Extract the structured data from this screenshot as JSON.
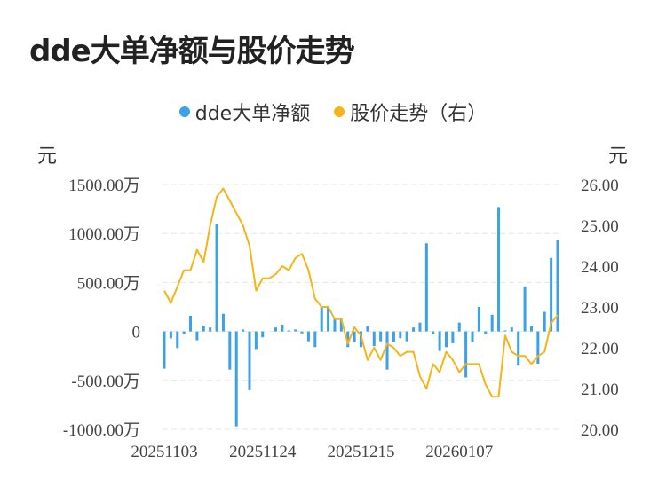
{
  "title": "dde大单净额与股价走势",
  "left_unit": "元",
  "right_unit": "元",
  "colors": {
    "bar": "#3ba1e8",
    "line": "#f5b417",
    "grid": "#e6e6e6"
  },
  "chart_data": {
    "type": "bar+line",
    "legend": [
      "dde大单净额",
      "股价走势（右）"
    ],
    "y_left": {
      "ticks": [
        1500,
        1000,
        500,
        0,
        -500,
        -1000
      ],
      "tick_labels": [
        "1500.00万",
        "1000.00万",
        "500.00万",
        "0",
        "-500.00万",
        "-1000.00万"
      ],
      "range": [
        -1000,
        1500
      ]
    },
    "y_right": {
      "ticks": [
        26,
        25,
        24,
        23,
        22,
        21,
        20
      ],
      "tick_labels": [
        "26.00",
        "25.00",
        "24.00",
        "23.00",
        "22.00",
        "21.00",
        "20.00"
      ],
      "range": [
        20,
        26
      ]
    },
    "x_tick_labels": [
      {
        "index": 0,
        "label": "20251103"
      },
      {
        "index": 15,
        "label": "20251124"
      },
      {
        "index": 30,
        "label": "20251215"
      },
      {
        "index": 45,
        "label": "20260107"
      }
    ],
    "series": [
      {
        "name": "dde大单净额",
        "type": "bar",
        "axis": "left",
        "values": [
          -380,
          -70,
          -170,
          -30,
          160,
          -90,
          60,
          40,
          1100,
          180,
          -390,
          -970,
          20,
          -600,
          -180,
          -60,
          0,
          40,
          70,
          10,
          20,
          -20,
          -100,
          -160,
          250,
          260,
          130,
          130,
          -160,
          -110,
          -160,
          50,
          -150,
          -100,
          -390,
          -110,
          -70,
          -100,
          40,
          90,
          900,
          -30,
          -200,
          -160,
          -120,
          90,
          -470,
          -110,
          250,
          -30,
          170,
          1270,
          10,
          40,
          -350,
          460,
          50,
          -330,
          200,
          750,
          930
        ]
      },
      {
        "name": "股价走势（右）",
        "type": "line",
        "axis": "right",
        "values": [
          23.4,
          23.1,
          23.5,
          23.9,
          23.9,
          24.4,
          24.1,
          25.0,
          25.7,
          25.9,
          25.6,
          25.3,
          25.0,
          24.5,
          23.4,
          23.7,
          23.7,
          23.8,
          24.0,
          23.9,
          24.2,
          24.3,
          23.9,
          23.2,
          23.0,
          23.0,
          22.7,
          22.7,
          22.1,
          22.5,
          22.3,
          21.7,
          22.0,
          21.7,
          22.1,
          22.0,
          21.8,
          21.9,
          21.9,
          21.3,
          21.0,
          21.6,
          21.4,
          21.9,
          21.7,
          21.4,
          21.6,
          21.6,
          21.6,
          21.1,
          20.8,
          20.8,
          22.3,
          21.9,
          21.8,
          21.8,
          21.6,
          21.8,
          21.9,
          22.6,
          22.8
        ]
      }
    ]
  }
}
